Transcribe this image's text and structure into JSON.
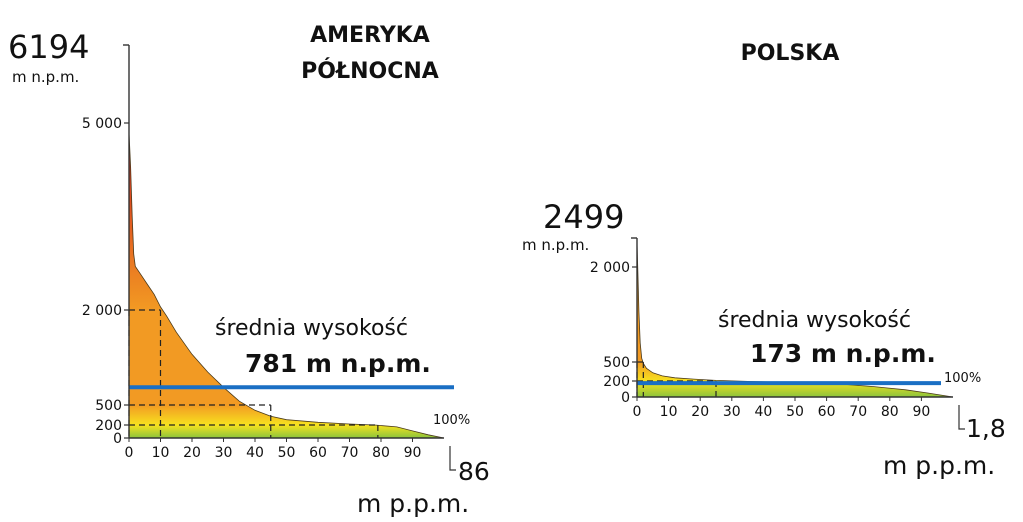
{
  "chart_data": [
    {
      "type": "area",
      "title": "AMERYKA\nPÓŁNOCNA",
      "title_lines": [
        "AMERYKA",
        "PÓŁNOCNA"
      ],
      "max_value": "6194",
      "max_unit": "m n.p.m.",
      "min_value": "86",
      "min_unit": "m p.p.m.",
      "end_label": "100%",
      "mean_label_line1": "średnia wysokość",
      "mean_label_line2": "781 m n.p.m.",
      "mean_value": 781,
      "x_ticks": [
        "0",
        "10",
        "20",
        "30",
        "40",
        "50",
        "60",
        "70",
        "80",
        "90"
      ],
      "y_ticks": [
        {
          "label": "0",
          "value": 0
        },
        {
          "label": "200",
          "value": 200
        },
        {
          "label": "500",
          "value": 500
        },
        {
          "label": "2 000",
          "value": 2000
        },
        {
          "label": "5 000",
          "value": 5000
        }
      ],
      "curve": [
        {
          "x": 0,
          "y": 4850
        },
        {
          "x": 0.5,
          "y": 4300
        },
        {
          "x": 1,
          "y": 3500
        },
        {
          "x": 1.5,
          "y": 2900
        },
        {
          "x": 2,
          "y": 2700
        },
        {
          "x": 4,
          "y": 2550
        },
        {
          "x": 6,
          "y": 2400
        },
        {
          "x": 8,
          "y": 2250
        },
        {
          "x": 10,
          "y": 2050
        },
        {
          "x": 12,
          "y": 1900
        },
        {
          "x": 15,
          "y": 1650
        },
        {
          "x": 20,
          "y": 1300
        },
        {
          "x": 25,
          "y": 1020
        },
        {
          "x": 30,
          "y": 780
        },
        {
          "x": 35,
          "y": 560
        },
        {
          "x": 40,
          "y": 420
        },
        {
          "x": 45,
          "y": 330
        },
        {
          "x": 50,
          "y": 280
        },
        {
          "x": 60,
          "y": 240
        },
        {
          "x": 70,
          "y": 215
        },
        {
          "x": 78,
          "y": 200
        },
        {
          "x": 85,
          "y": 170
        },
        {
          "x": 90,
          "y": 110
        },
        {
          "x": 95,
          "y": 50
        },
        {
          "x": 100,
          "y": 0
        }
      ],
      "guides": [
        {
          "x": 10,
          "y": 2000
        },
        {
          "x": 45,
          "y": 500
        },
        {
          "x": 79,
          "y": 200
        }
      ],
      "ylim": [
        0,
        6194
      ],
      "xlim": [
        0,
        100
      ]
    },
    {
      "type": "area",
      "title": "POLSKA",
      "title_lines": [
        "POLSKA"
      ],
      "max_value": "2499",
      "max_unit": "m n.p.m.",
      "min_value": "1,8",
      "min_unit": "m p.p.m.",
      "end_label": "100%",
      "mean_label_line1": "średnia wysokość",
      "mean_label_line2": "173 m n.p.m.",
      "mean_value": 173,
      "x_ticks": [
        "0",
        "10",
        "20",
        "30",
        "40",
        "50",
        "60",
        "70",
        "80",
        "90"
      ],
      "y_ticks": [
        {
          "label": "0",
          "value": 0
        },
        {
          "label": "200",
          "value": 200
        },
        {
          "label": "500",
          "value": 500
        },
        {
          "label": "2 000",
          "value": 2000
        }
      ],
      "curve": [
        {
          "x": 0,
          "y": 2400
        },
        {
          "x": 0.3,
          "y": 1900
        },
        {
          "x": 0.6,
          "y": 1300
        },
        {
          "x": 1,
          "y": 800
        },
        {
          "x": 1.5,
          "y": 560
        },
        {
          "x": 2,
          "y": 480
        },
        {
          "x": 3,
          "y": 400
        },
        {
          "x": 5,
          "y": 330
        },
        {
          "x": 8,
          "y": 280
        },
        {
          "x": 12,
          "y": 250
        },
        {
          "x": 18,
          "y": 230
        },
        {
          "x": 25,
          "y": 210
        },
        {
          "x": 35,
          "y": 195
        },
        {
          "x": 45,
          "y": 185
        },
        {
          "x": 55,
          "y": 175
        },
        {
          "x": 65,
          "y": 160
        },
        {
          "x": 75,
          "y": 130
        },
        {
          "x": 85,
          "y": 90
        },
        {
          "x": 92,
          "y": 50
        },
        {
          "x": 100,
          "y": 0
        }
      ],
      "guides": [
        {
          "x": 2,
          "y": 500
        },
        {
          "x": 25,
          "y": 200
        }
      ],
      "ylim": [
        0,
        2499
      ],
      "xlim": [
        0,
        100
      ]
    }
  ],
  "colors": {
    "mean_line": "#1a6fc4",
    "grad_top": "#d21e1e",
    "grad_mid": "#f29a23",
    "grad_low": "#f7e21f",
    "grad_bottom": "#8cc43c",
    "guides": "#222222",
    "axis": "#333333"
  }
}
